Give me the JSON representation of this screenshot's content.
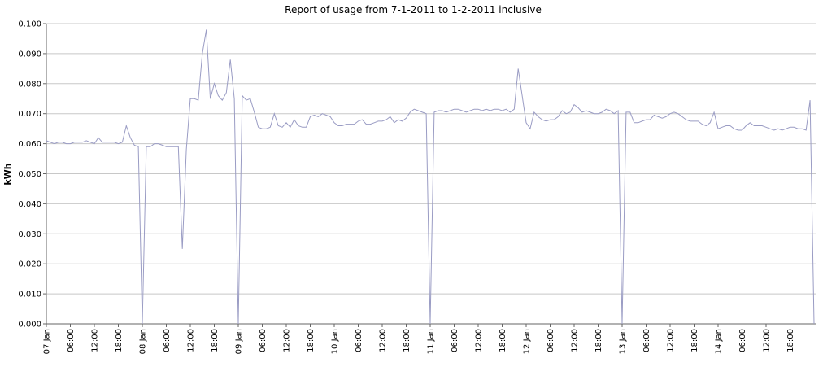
{
  "chart_data": {
    "type": "line",
    "title": "Report of usage from 7-1-2011 to 1-2-2011 inclusive",
    "y_label": "kWh",
    "x": [
      0,
      1,
      2,
      3,
      4,
      5,
      6,
      7,
      8,
      9,
      10,
      11,
      12,
      13,
      14,
      15,
      16,
      17,
      18,
      19,
      20,
      21,
      22,
      23,
      24,
      25,
      26,
      27,
      28,
      29,
      30,
      31,
      32,
      33,
      34,
      35,
      36,
      37,
      38,
      39,
      40,
      41,
      42,
      43,
      44,
      45,
      46,
      47,
      48,
      49,
      50,
      51,
      52,
      53,
      54,
      55,
      56,
      57,
      58,
      59,
      60,
      61,
      62,
      63,
      64,
      65,
      66,
      67,
      68,
      69,
      70,
      71,
      72,
      73,
      74,
      75,
      76,
      77,
      78,
      79,
      80,
      81,
      82,
      83,
      84,
      85,
      86,
      87,
      88,
      89,
      90,
      91,
      92,
      93,
      94,
      95,
      96,
      97,
      98,
      99,
      100,
      101,
      102,
      103,
      104,
      105,
      106,
      107,
      108,
      109,
      110,
      111,
      112,
      113,
      114,
      115,
      116,
      117,
      118,
      119,
      120,
      121,
      122,
      123,
      124,
      125,
      126,
      127,
      128,
      129,
      130,
      131,
      132,
      133,
      134,
      135,
      136,
      137,
      138,
      139,
      140,
      141,
      142,
      143,
      144,
      145,
      146,
      147,
      148,
      149,
      150,
      151,
      152,
      153,
      154,
      155,
      156,
      157,
      158,
      159,
      160,
      161,
      162,
      163,
      164,
      165,
      166,
      167,
      168,
      169,
      170,
      171,
      172,
      173,
      174,
      175,
      176,
      177,
      178,
      179,
      180,
      181,
      182,
      183,
      184,
      185,
      186,
      187,
      188,
      189,
      190,
      191,
      192
    ],
    "series": [
      {
        "name": "kWh",
        "color": "#9a9cc4",
        "values": [
          0.061,
          0.0605,
          0.06,
          0.0605,
          0.0605,
          0.06,
          0.06,
          0.0605,
          0.0605,
          0.0605,
          0.061,
          0.0605,
          0.06,
          0.062,
          0.0605,
          0.0605,
          0.0605,
          0.0605,
          0.06,
          0.0605,
          0.066,
          0.062,
          0.0595,
          0.059,
          0,
          0.059,
          0.059,
          0.06,
          0.06,
          0.0595,
          0.059,
          0.059,
          0.059,
          0.059,
          0.025,
          0.058,
          0.075,
          0.075,
          0.0745,
          0.09,
          0.098,
          0.075,
          0.08,
          0.076,
          0.0745,
          0.077,
          0.088,
          0.075,
          0,
          0.076,
          0.0745,
          0.075,
          0.0705,
          0.0655,
          0.065,
          0.065,
          0.0655,
          0.07,
          0.066,
          0.0655,
          0.067,
          0.0655,
          0.068,
          0.066,
          0.0655,
          0.0655,
          0.069,
          0.0695,
          0.069,
          0.07,
          0.0695,
          0.069,
          0.067,
          0.066,
          0.066,
          0.0665,
          0.0665,
          0.0665,
          0.0675,
          0.068,
          0.0665,
          0.0665,
          0.067,
          0.0675,
          0.0675,
          0.068,
          0.069,
          0.067,
          0.068,
          0.0675,
          0.0685,
          0.0705,
          0.0715,
          0.071,
          0.0705,
          0.07,
          0,
          0.0705,
          0.071,
          0.071,
          0.0705,
          0.071,
          0.0715,
          0.0715,
          0.071,
          0.0705,
          0.071,
          0.0715,
          0.0715,
          0.071,
          0.0715,
          0.071,
          0.0715,
          0.0715,
          0.071,
          0.0715,
          0.0705,
          0.0715,
          0.085,
          0.076,
          0.067,
          0.065,
          0.0705,
          0.069,
          0.068,
          0.0675,
          0.068,
          0.068,
          0.069,
          0.071,
          0.07,
          0.0705,
          0.073,
          0.072,
          0.0705,
          0.071,
          0.0705,
          0.07,
          0.07,
          0.0705,
          0.0715,
          0.071,
          0.07,
          0.071,
          0,
          0.0705,
          0.0705,
          0.067,
          0.067,
          0.0675,
          0.068,
          0.068,
          0.0695,
          0.069,
          0.0685,
          0.069,
          0.07,
          0.0705,
          0.07,
          0.069,
          0.068,
          0.0675,
          0.0675,
          0.0675,
          0.0665,
          0.066,
          0.067,
          0.0705,
          0.065,
          0.0655,
          0.066,
          0.066,
          0.065,
          0.0645,
          0.0645,
          0.066,
          0.067,
          0.066,
          0.066,
          0.066,
          0.0655,
          0.065,
          0.0645,
          0.065,
          0.0645,
          0.065,
          0.0655,
          0.0655,
          0.065,
          0.065,
          0.0645,
          0.0745,
          0
        ]
      }
    ],
    "xlim": [
      0,
      192
    ],
    "xticks": [
      {
        "value": 0,
        "label": "07 Jan"
      },
      {
        "value": 6,
        "label": "06:00"
      },
      {
        "value": 12,
        "label": "12:00"
      },
      {
        "value": 18,
        "label": "18:00"
      },
      {
        "value": 24,
        "label": "08 Jan"
      },
      {
        "value": 30,
        "label": "06:00"
      },
      {
        "value": 36,
        "label": "12:00"
      },
      {
        "value": 42,
        "label": "18:00"
      },
      {
        "value": 48,
        "label": "09 Jan"
      },
      {
        "value": 54,
        "label": "06:00"
      },
      {
        "value": 60,
        "label": "12:00"
      },
      {
        "value": 66,
        "label": "18:00"
      },
      {
        "value": 72,
        "label": "10 Jan"
      },
      {
        "value": 78,
        "label": "06:00"
      },
      {
        "value": 84,
        "label": "12:00"
      },
      {
        "value": 90,
        "label": "18:00"
      },
      {
        "value": 96,
        "label": "11 Jan"
      },
      {
        "value": 102,
        "label": "06:00"
      },
      {
        "value": 108,
        "label": "12:00"
      },
      {
        "value": 114,
        "label": "18:00"
      },
      {
        "value": 120,
        "label": "12 Jan"
      },
      {
        "value": 126,
        "label": "06:00"
      },
      {
        "value": 132,
        "label": "12:00"
      },
      {
        "value": 138,
        "label": "18:00"
      },
      {
        "value": 144,
        "label": "13 Jan"
      },
      {
        "value": 150,
        "label": "06:00"
      },
      {
        "value": 156,
        "label": "12:00"
      },
      {
        "value": 162,
        "label": "18:00"
      },
      {
        "value": 168,
        "label": "14 Jan"
      },
      {
        "value": 174,
        "label": "06:00"
      },
      {
        "value": 180,
        "label": "12:00"
      },
      {
        "value": 186,
        "label": "18:00"
      }
    ],
    "ylim": [
      0,
      0.1
    ],
    "yticks": [
      {
        "value": 0,
        "label": "0.000"
      },
      {
        "value": 0.01,
        "label": "0.010"
      },
      {
        "value": 0.02,
        "label": "0.020"
      },
      {
        "value": 0.03,
        "label": "0.030"
      },
      {
        "value": 0.04,
        "label": "0.040"
      },
      {
        "value": 0.05,
        "label": "0.050"
      },
      {
        "value": 0.06,
        "label": "0.060"
      },
      {
        "value": 0.07,
        "label": "0.070"
      },
      {
        "value": 0.08,
        "label": "0.080"
      },
      {
        "value": 0.09,
        "label": "0.090"
      },
      {
        "value": 0.1,
        "label": "0.100"
      }
    ],
    "grid": true
  }
}
